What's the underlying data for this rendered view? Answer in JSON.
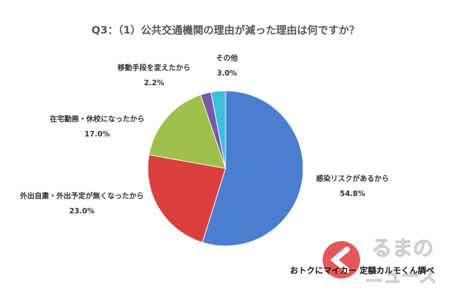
{
  "chart_data": {
    "type": "pie",
    "title": "Q3：（1）公共交通機関の理由が減った理由は何ですか？",
    "categories": [
      "感染リスクがあるから",
      "外出自粛・外出予定が無くなったから",
      "在宅勤務・休校になったから",
      "移動手段を変えたから",
      "その他"
    ],
    "values": [
      54.8,
      23.0,
      17.0,
      2.2,
      3.0
    ],
    "value_labels": [
      "54.8%",
      "23.0%",
      "17.0%",
      "2.2%",
      "3.0%"
    ],
    "colors": [
      "#4a7fd0",
      "#d9403c",
      "#9cc04a",
      "#7a58a8",
      "#3cc0dc"
    ],
    "source": "おトクにマイカー 定額カルモくん調べ"
  },
  "logo": {
    "lines": [
      "るまの",
      "ニュース"
    ]
  }
}
